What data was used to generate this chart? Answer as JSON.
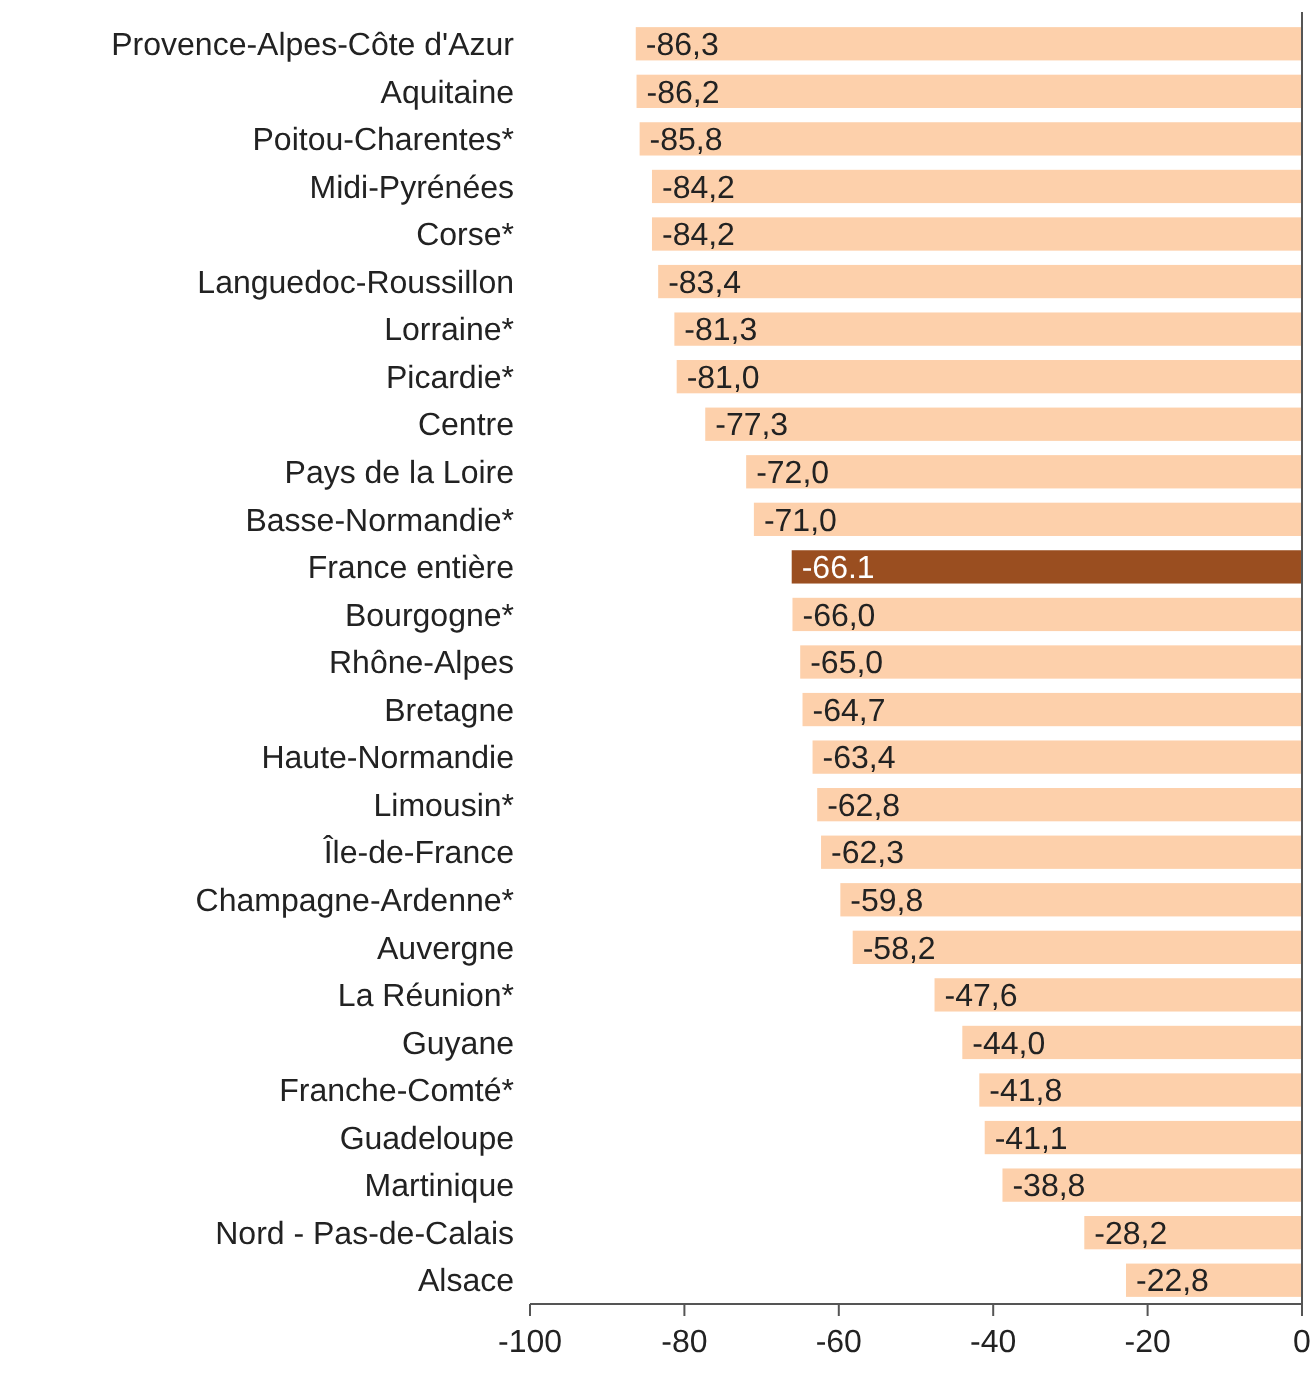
{
  "chart_data": {
    "type": "bar",
    "orientation": "horizontal",
    "categories": [
      "Provence-Alpes-Côte d'Azur",
      "Aquitaine",
      "Poitou-Charentes*",
      "Midi-Pyrénées",
      "Corse*",
      "Languedoc-Roussillon",
      "Lorraine*",
      "Picardie*",
      "Centre",
      "Pays de la Loire",
      "Basse-Normandie*",
      "France entière",
      "Bourgogne*",
      "Rhône-Alpes",
      "Bretagne",
      "Haute-Normandie",
      "Limousin*",
      "Île-de-France",
      "Champagne-Ardenne*",
      "Auvergne",
      "La Réunion*",
      "Guyane",
      "Franche-Comté*",
      "Guadeloupe",
      "Martinique",
      "Nord - Pas-de-Calais",
      "Alsace"
    ],
    "values": [
      -86.3,
      -86.2,
      -85.8,
      -84.2,
      -84.2,
      -83.4,
      -81.3,
      -81.0,
      -77.3,
      -72.0,
      -71.0,
      -66.1,
      -66.0,
      -65.0,
      -64.7,
      -63.4,
      -62.8,
      -62.3,
      -59.8,
      -58.2,
      -47.6,
      -44.0,
      -41.8,
      -41.1,
      -38.8,
      -28.2,
      -22.8
    ],
    "value_labels": [
      "-86,3",
      "-86,2",
      "-85,8",
      "-84,2",
      "-84,2",
      "-83,4",
      "-81,3",
      "-81,0",
      "-77,3",
      "-72,0",
      "-71,0",
      "-66.1",
      "-66,0",
      "-65,0",
      "-64,7",
      "-63,4",
      "-62,8",
      "-62,3",
      "-59,8",
      "-58,2",
      "-47,6",
      "-44,0",
      "-41,8",
      "-41,1",
      "-38,8",
      "-28,2",
      "-22,8"
    ],
    "colors": [
      "#fdd0ab",
      "#fdd0ab",
      "#fdd0ab",
      "#fdd0ab",
      "#fdd0ab",
      "#fdd0ab",
      "#fdd0ab",
      "#fdd0ab",
      "#fdd0ab",
      "#fdd0ab",
      "#fdd0ab",
      "#9a4e20",
      "#fdd0ab",
      "#fdd0ab",
      "#fdd0ab",
      "#fdd0ab",
      "#fdd0ab",
      "#fdd0ab",
      "#fdd0ab",
      "#fdd0ab",
      "#fdd0ab",
      "#fdd0ab",
      "#fdd0ab",
      "#fdd0ab",
      "#fdd0ab",
      "#fdd0ab",
      "#fdd0ab"
    ],
    "xlim": [
      -100,
      0
    ],
    "xticks": [
      -100,
      -80,
      -60,
      -40,
      -20,
      0
    ],
    "grid": false
  }
}
